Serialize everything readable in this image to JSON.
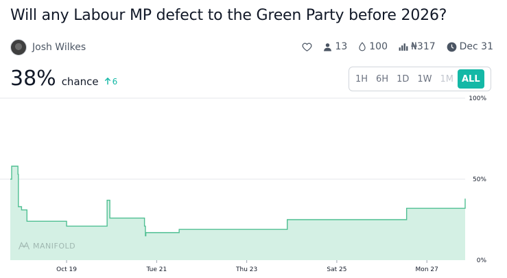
{
  "header": {
    "title": "Will any Labour MP defect to the Green Party before 2026?"
  },
  "author": {
    "name": "Josh Wilkes",
    "avatar_icon": "user-avatar"
  },
  "meta": {
    "traders": "13",
    "liquidity": "100",
    "volume": "₦317",
    "close_date": "Dec 31",
    "icons": [
      "heart-icon",
      "user-icon",
      "droplet-icon",
      "bar-chart-icon",
      "clock-icon"
    ]
  },
  "probability": {
    "value": "38%",
    "label": "chance",
    "change": "6"
  },
  "time_range": {
    "options": [
      "1H",
      "6H",
      "1D",
      "1W",
      "1M",
      "ALL"
    ],
    "selected": "ALL",
    "disabled": [
      "1M"
    ]
  },
  "watermark": "MANIFOLD",
  "colors": {
    "accent": "#14b8a6",
    "line": "#4fbf92",
    "fill": "#d4f0e4"
  },
  "chart_data": {
    "type": "area",
    "title": "",
    "xlabel": "",
    "ylabel": "",
    "ylim": [
      0,
      100
    ],
    "ytick_labels": [
      "0%",
      "50%",
      "100%"
    ],
    "ytick_values": [
      0,
      50,
      100
    ],
    "xtick_labels": [
      "Oct 19",
      "Tue 21",
      "Thu 23",
      "Sat 25",
      "Mon 27"
    ],
    "xtick_days": [
      19,
      21,
      23,
      25,
      27
    ],
    "xlim_days": [
      17.75,
      27.85
    ],
    "grid": true,
    "series": [
      {
        "x_days": [
          17.75,
          17.78,
          17.88,
          17.92,
          17.93,
          18.0,
          18.12,
          18.42,
          19.0,
          19.9,
          19.96,
          20.73,
          20.75,
          20.76,
          20.79,
          21.5,
          23.9,
          26.2,
          26.55,
          27.85
        ],
        "y_pct": [
          50,
          58,
          58,
          53,
          33,
          31,
          24,
          24,
          21,
          37,
          26,
          21,
          15,
          17,
          17,
          19,
          25,
          25,
          32,
          38
        ]
      }
    ]
  }
}
